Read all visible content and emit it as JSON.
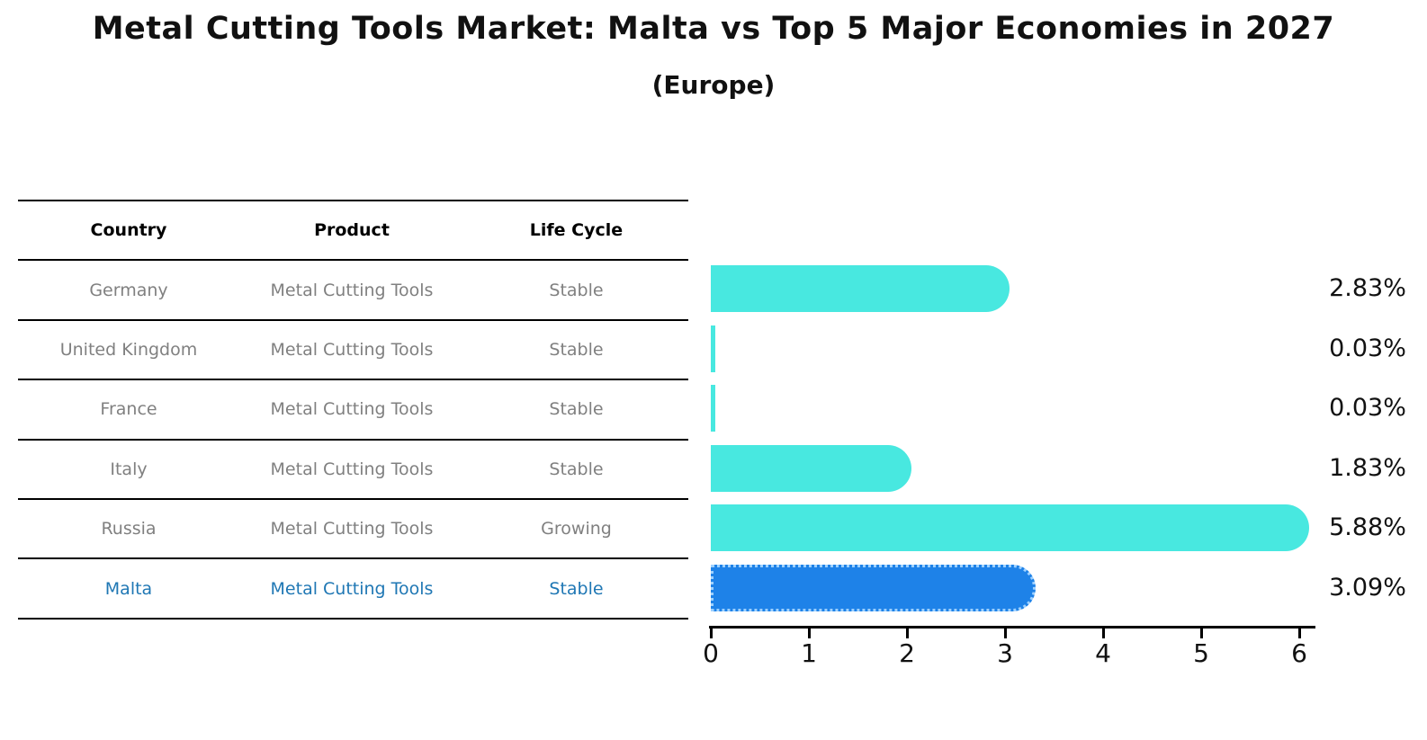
{
  "title": "Metal Cutting Tools Market: Malta vs Top 5 Major Economies in 2027",
  "subtitle": "(Europe)",
  "table": {
    "headers": [
      "Country",
      "Product",
      "Life Cycle"
    ],
    "rows": [
      {
        "country": "Germany",
        "product": "Metal Cutting Tools",
        "life_cycle": "Stable",
        "highlight": false
      },
      {
        "country": "United Kingdom",
        "product": "Metal Cutting Tools",
        "life_cycle": "Stable",
        "highlight": false
      },
      {
        "country": "France",
        "product": "Metal Cutting Tools",
        "life_cycle": "Stable",
        "highlight": false
      },
      {
        "country": "Italy",
        "product": "Metal Cutting Tools",
        "life_cycle": "Stable",
        "highlight": false
      },
      {
        "country": "Russia",
        "product": "Metal Cutting Tools",
        "life_cycle": "Growing",
        "highlight": false
      },
      {
        "country": "Malta",
        "product": "Metal Cutting Tools",
        "life_cycle": "Stable",
        "highlight": true
      }
    ]
  },
  "chart_data": {
    "type": "bar",
    "orientation": "horizontal",
    "categories": [
      "Germany",
      "United Kingdom",
      "France",
      "Italy",
      "Russia",
      "Malta"
    ],
    "values": [
      2.83,
      0.03,
      0.03,
      1.83,
      5.88,
      3.09
    ],
    "value_labels": [
      "2.83%",
      "0.03%",
      "0.03%",
      "1.83%",
      "5.88%",
      "3.09%"
    ],
    "x_ticks": [
      "0",
      "1",
      "2",
      "3",
      "4",
      "5",
      "6"
    ],
    "xlim": [
      0,
      6
    ],
    "grid": false,
    "legend": false,
    "highlight_index": 5,
    "bar_color": "#48E8E0",
    "highlight_bar_color": "#1E82E8",
    "highlight_text_color": "#1f77b4",
    "row_text_color": "#808080"
  }
}
